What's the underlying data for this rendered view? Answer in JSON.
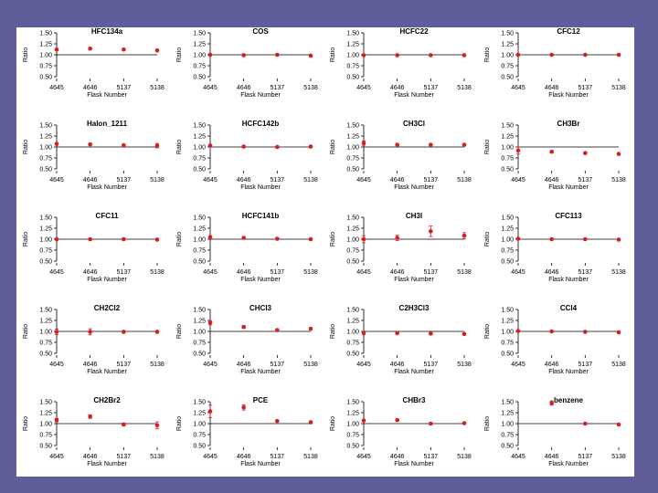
{
  "colors": {
    "background": "#5f5d9a",
    "panel": "#ffffff",
    "marker": "#d42020",
    "axis": "#000000"
  },
  "chart_data": [
    {
      "type": "scatter",
      "title": "HFC134a",
      "xlabel": "Flask Number",
      "ylabel": "Ratio",
      "categories": [
        "4645",
        "4646",
        "5137",
        "5138"
      ],
      "values": [
        1.12,
        1.14,
        1.12,
        1.1
      ],
      "errors": [
        0.02,
        0.02,
        0.02,
        0.02
      ],
      "ylim": [
        0.5,
        1.5
      ],
      "yticks": [
        "0.50",
        "0.75",
        "1.00",
        "1.25",
        "1.50"
      ],
      "grid": false
    },
    {
      "type": "scatter",
      "title": "COS",
      "xlabel": "Flask Number",
      "ylabel": "Ratio",
      "categories": [
        "4645",
        "4646",
        "5137",
        "5138"
      ],
      "values": [
        1.0,
        0.99,
        1.0,
        0.98
      ],
      "errors": [
        0.02,
        0.02,
        0.02,
        0.02
      ],
      "ylim": [
        0.5,
        1.5
      ],
      "yticks": [
        "0.50",
        "0.75",
        "1.00",
        "1.25",
        "1.50"
      ],
      "grid": false
    },
    {
      "type": "scatter",
      "title": "HCFC22",
      "xlabel": "Flask Number",
      "ylabel": "Ratio",
      "categories": [
        "4645",
        "4646",
        "5137",
        "5138"
      ],
      "values": [
        0.99,
        0.99,
        0.99,
        0.99
      ],
      "errors": [
        0.01,
        0.01,
        0.01,
        0.01
      ],
      "ylim": [
        0.5,
        1.5
      ],
      "yticks": [
        "0.50",
        "0.75",
        "1.00",
        "1.25",
        "1.50"
      ],
      "grid": false
    },
    {
      "type": "scatter",
      "title": "CFC12",
      "xlabel": "Flask Number",
      "ylabel": "Ratio",
      "categories": [
        "4645",
        "4646",
        "5137",
        "5138"
      ],
      "values": [
        1.0,
        1.0,
        1.0,
        1.0
      ],
      "errors": [
        0.01,
        0.01,
        0.01,
        0.01
      ],
      "ylim": [
        0.5,
        1.5
      ],
      "yticks": [
        "0.50",
        "0.75",
        "1.00",
        "1.25",
        "1.50"
      ],
      "grid": false
    },
    {
      "type": "scatter",
      "title": "Halon_1211",
      "xlabel": "Flask Number",
      "ylabel": "Ratio",
      "categories": [
        "4645",
        "4646",
        "5137",
        "5138"
      ],
      "values": [
        1.07,
        1.06,
        1.04,
        1.03
      ],
      "errors": [
        0.03,
        0.02,
        0.02,
        0.05
      ],
      "ylim": [
        0.5,
        1.5
      ],
      "yticks": [
        "0.50",
        "0.75",
        "1.00",
        "1.25",
        "1.50"
      ],
      "grid": false
    },
    {
      "type": "scatter",
      "title": "HCFC142b",
      "xlabel": "Flask Number",
      "ylabel": "Ratio",
      "categories": [
        "4645",
        "4646",
        "5137",
        "5138"
      ],
      "values": [
        1.03,
        1.01,
        1.0,
        1.01
      ],
      "errors": [
        0.02,
        0.02,
        0.02,
        0.02
      ],
      "ylim": [
        0.5,
        1.5
      ],
      "yticks": [
        "0.50",
        "0.75",
        "1.00",
        "1.25",
        "1.50"
      ],
      "grid": false
    },
    {
      "type": "scatter",
      "title": "CH3Cl",
      "xlabel": "Flask Number",
      "ylabel": "Ratio",
      "categories": [
        "4645",
        "4646",
        "5137",
        "5138"
      ],
      "values": [
        1.09,
        1.05,
        1.05,
        1.05
      ],
      "errors": [
        0.05,
        0.02,
        0.02,
        0.02
      ],
      "ylim": [
        0.5,
        1.5
      ],
      "yticks": [
        "0.50",
        "0.75",
        "1.00",
        "1.25",
        "1.50"
      ],
      "grid": false
    },
    {
      "type": "scatter",
      "title": "CH3Br",
      "xlabel": "Flask Number",
      "ylabel": "Ratio",
      "categories": [
        "4645",
        "4646",
        "5137",
        "5138"
      ],
      "values": [
        0.92,
        0.89,
        0.86,
        0.84
      ],
      "errors": [
        0.08,
        0.02,
        0.02,
        0.02
      ],
      "ylim": [
        0.5,
        1.5
      ],
      "yticks": [
        "0.50",
        "0.75",
        "1.00",
        "1.25",
        "1.50"
      ],
      "grid": false
    },
    {
      "type": "scatter",
      "title": "CFC11",
      "xlabel": "Flask Number",
      "ylabel": "Ratio",
      "categories": [
        "4645",
        "4646",
        "5137",
        "5138"
      ],
      "values": [
        1.0,
        1.0,
        1.0,
        0.99
      ],
      "errors": [
        0.01,
        0.01,
        0.01,
        0.01
      ],
      "ylim": [
        0.5,
        1.5
      ],
      "yticks": [
        "0.50",
        "0.75",
        "1.00",
        "1.25",
        "1.50"
      ],
      "grid": false
    },
    {
      "type": "scatter",
      "title": "HCFC141b",
      "xlabel": "Flask Number",
      "ylabel": "Ratio",
      "categories": [
        "4645",
        "4646",
        "5137",
        "5138"
      ],
      "values": [
        1.05,
        1.03,
        1.01,
        1.0
      ],
      "errors": [
        0.02,
        0.02,
        0.02,
        0.02
      ],
      "ylim": [
        0.5,
        1.5
      ],
      "yticks": [
        "0.50",
        "0.75",
        "1.00",
        "1.25",
        "1.50"
      ],
      "grid": false
    },
    {
      "type": "scatter",
      "title": "CH3I",
      "xlabel": "Flask Number",
      "ylabel": "Ratio",
      "categories": [
        "4645",
        "4646",
        "5137",
        "5138"
      ],
      "values": [
        1.0,
        1.03,
        1.18,
        1.08
      ],
      "errors": [
        0.08,
        0.06,
        0.12,
        0.07
      ],
      "ylim": [
        0.5,
        1.5
      ],
      "yticks": [
        "0.50",
        "0.75",
        "1.00",
        "1.25",
        "1.50"
      ],
      "grid": false
    },
    {
      "type": "scatter",
      "title": "CFC113",
      "xlabel": "Flask Number",
      "ylabel": "Ratio",
      "categories": [
        "4645",
        "4646",
        "5137",
        "5138"
      ],
      "values": [
        1.01,
        1.0,
        1.0,
        0.99
      ],
      "errors": [
        0.01,
        0.01,
        0.01,
        0.01
      ],
      "ylim": [
        0.5,
        1.5
      ],
      "yticks": [
        "0.50",
        "0.75",
        "1.00",
        "1.25",
        "1.50"
      ],
      "grid": false
    },
    {
      "type": "scatter",
      "title": "CH2Cl2",
      "xlabel": "Flask Number",
      "ylabel": "Ratio",
      "categories": [
        "4645",
        "4646",
        "5137",
        "5138"
      ],
      "values": [
        0.99,
        0.99,
        0.99,
        0.99
      ],
      "errors": [
        0.06,
        0.07,
        0.02,
        0.02
      ],
      "ylim": [
        0.5,
        1.5
      ],
      "yticks": [
        "0.50",
        "0.75",
        "1.00",
        "1.25",
        "1.50"
      ],
      "grid": false
    },
    {
      "type": "scatter",
      "title": "CHCl3",
      "xlabel": "Flask Number",
      "ylabel": "Ratio",
      "categories": [
        "4645",
        "4646",
        "5137",
        "5138"
      ],
      "values": [
        1.2,
        1.1,
        1.03,
        1.06
      ],
      "errors": [
        0.05,
        0.03,
        0.02,
        0.02
      ],
      "ylim": [
        0.5,
        1.5
      ],
      "yticks": [
        "0.50",
        "0.75",
        "1.00",
        "1.25",
        "1.50"
      ],
      "grid": false
    },
    {
      "type": "scatter",
      "title": "C2H3Cl3",
      "xlabel": "Flask Number",
      "ylabel": "Ratio",
      "categories": [
        "4645",
        "4646",
        "5137",
        "5138"
      ],
      "values": [
        0.96,
        0.96,
        0.95,
        0.94
      ],
      "errors": [
        0.02,
        0.02,
        0.02,
        0.02
      ],
      "ylim": [
        0.5,
        1.5
      ],
      "yticks": [
        "0.50",
        "0.75",
        "1.00",
        "1.25",
        "1.50"
      ],
      "grid": false
    },
    {
      "type": "scatter",
      "title": "CCl4",
      "xlabel": "Flask Number",
      "ylabel": "Ratio",
      "categories": [
        "4645",
        "4646",
        "5137",
        "5138"
      ],
      "values": [
        1.01,
        1.0,
        0.99,
        0.98
      ],
      "errors": [
        0.01,
        0.01,
        0.01,
        0.01
      ],
      "ylim": [
        0.5,
        1.5
      ],
      "yticks": [
        "0.50",
        "0.75",
        "1.00",
        "1.25",
        "1.50"
      ],
      "grid": false
    },
    {
      "type": "scatter",
      "title": "CH2Br2",
      "xlabel": "Flask Number",
      "ylabel": "Ratio",
      "categories": [
        "4645",
        "4646",
        "5137",
        "5138"
      ],
      "values": [
        1.08,
        1.16,
        0.98,
        0.96
      ],
      "errors": [
        0.04,
        0.04,
        0.03,
        0.08
      ],
      "ylim": [
        0.5,
        1.5
      ],
      "yticks": [
        "0.50",
        "0.75",
        "1.00",
        "1.25",
        "1.50"
      ],
      "grid": false
    },
    {
      "type": "scatter",
      "title": "PCE",
      "xlabel": "Flask Number",
      "ylabel": "Ratio",
      "categories": [
        "4645",
        "4646",
        "5137",
        "5138"
      ],
      "values": [
        1.28,
        1.37,
        1.06,
        1.03
      ],
      "errors": [
        0.14,
        0.06,
        0.02,
        0.03
      ],
      "ylim": [
        0.5,
        1.5
      ],
      "yticks": [
        "0.50",
        "0.75",
        "1.00",
        "1.25",
        "1.50"
      ],
      "grid": false
    },
    {
      "type": "scatter",
      "title": "CHBr3",
      "xlabel": "Flask Number",
      "ylabel": "Ratio",
      "categories": [
        "4645",
        "4646",
        "5137",
        "5138"
      ],
      "values": [
        1.07,
        1.08,
        1.0,
        1.01
      ],
      "errors": [
        0.02,
        0.02,
        0.02,
        0.02
      ],
      "ylim": [
        0.5,
        1.5
      ],
      "yticks": [
        "0.50",
        "0.75",
        "1.00",
        "1.25",
        "1.50"
      ],
      "grid": false
    },
    {
      "type": "scatter",
      "title": "benzene",
      "xlabel": "Flask Number",
      "ylabel": "Ratio",
      "categories": [
        "4645",
        "4646",
        "5137",
        "5138"
      ],
      "values": [
        null,
        1.47,
        1.0,
        0.98
      ],
      "errors": [
        0,
        0.05,
        0.01,
        0.01
      ],
      "ylim": [
        0.5,
        1.5
      ],
      "yticks": [
        "0.50",
        "0.75",
        "1.00",
        "1.25",
        "1.50"
      ],
      "grid": false
    }
  ]
}
